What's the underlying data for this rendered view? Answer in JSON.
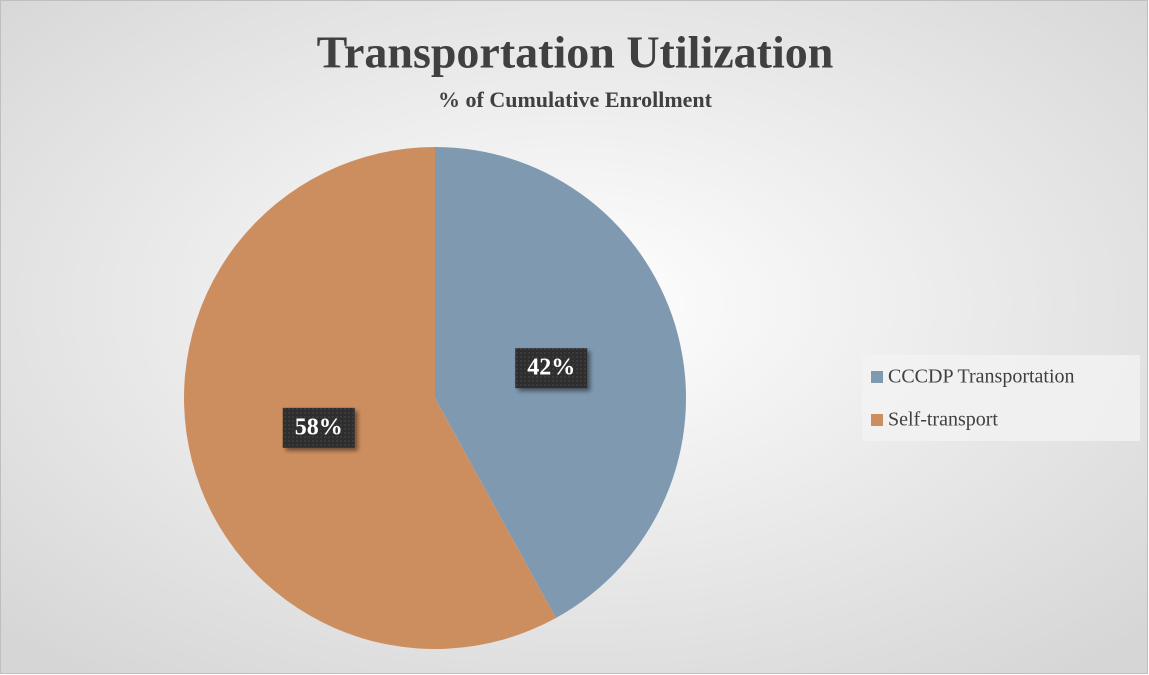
{
  "chart_data": {
    "type": "pie",
    "title": "Transportation Utilization",
    "subtitle": "% of Cumulative Enrollment",
    "categories": [
      "CCCDP Transportation",
      "Self-transport"
    ],
    "values": [
      42,
      58
    ],
    "value_labels": [
      "42%",
      "58%"
    ],
    "colors": [
      "#7f99b0",
      "#cd8e5f"
    ],
    "legend": "right"
  }
}
